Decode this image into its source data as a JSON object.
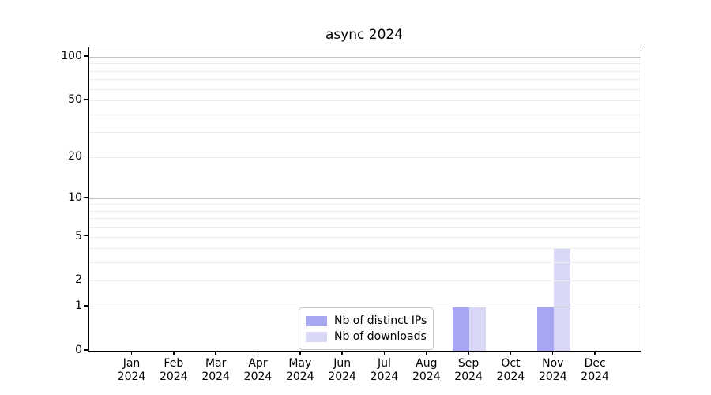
{
  "chart_data": {
    "type": "bar",
    "title": "async 2024",
    "xlabel": "",
    "ylabel": "",
    "yscale": "log1p",
    "ylim": [
      0,
      116
    ],
    "grid": true,
    "months": [
      "Jan",
      "Feb",
      "Mar",
      "Apr",
      "May",
      "Jun",
      "Jul",
      "Aug",
      "Sep",
      "Oct",
      "Nov",
      "Dec"
    ],
    "year_label": "2024",
    "y_tick_values": [
      0,
      1,
      2,
      5,
      10,
      20,
      50,
      100
    ],
    "y_major_gridlines": [
      1,
      10,
      100
    ],
    "y_minor_gridlines": [
      2,
      3,
      4,
      5,
      6,
      7,
      8,
      9,
      20,
      30,
      40,
      50,
      60,
      70,
      80,
      90
    ],
    "series": [
      {
        "name": "Nb of distinct IPs",
        "color": "#a6a6f2",
        "values": [
          0,
          0,
          0,
          0,
          0,
          0,
          0,
          0,
          1,
          0,
          1,
          0
        ]
      },
      {
        "name": "Nb of downloads",
        "color": "#d9d9f7",
        "values": [
          0,
          0,
          0,
          0,
          0,
          0,
          0,
          0,
          1,
          0,
          4,
          0
        ]
      }
    ],
    "legend": {
      "position": "lower center",
      "items": [
        "Nb of distinct IPs",
        "Nb of downloads"
      ]
    }
  },
  "colors": {
    "spine": "#000000",
    "major_grid": "#c6c6c6",
    "minor_grid": "#ededed",
    "legend_border": "#c9c9c9",
    "background": "#ffffff"
  }
}
